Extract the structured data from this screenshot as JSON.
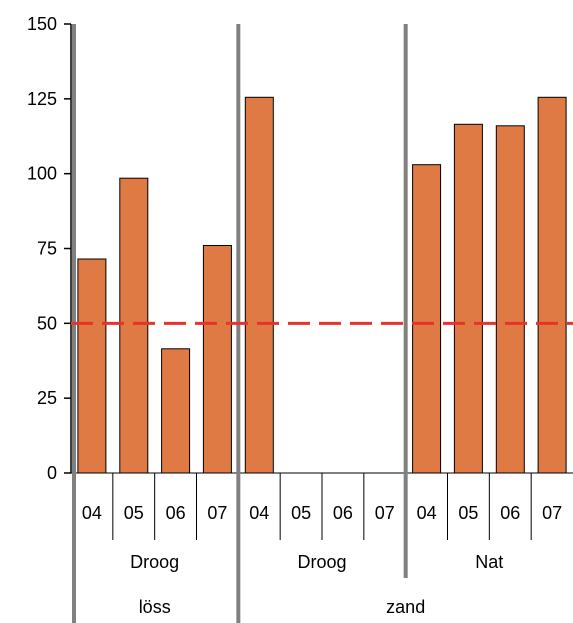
{
  "chart_data": {
    "type": "bar",
    "title": "",
    "ylim": [
      0,
      150
    ],
    "yticks": [
      0,
      25,
      50,
      75,
      100,
      125,
      150
    ],
    "categories": [
      "04",
      "05",
      "06",
      "07",
      "04",
      "05",
      "06",
      "07",
      "04",
      "05",
      "06",
      "07"
    ],
    "values": [
      71.5,
      98.5,
      41.5,
      76,
      125.5,
      null,
      null,
      null,
      103,
      116.5,
      116,
      125.5
    ],
    "groups_level1": [
      {
        "label": "Droog",
        "start": 0,
        "count": 4
      },
      {
        "label": "Droog",
        "start": 4,
        "count": 4
      },
      {
        "label": "Nat",
        "start": 8,
        "count": 4
      }
    ],
    "groups_level2": [
      {
        "label": "löss",
        "start": 0,
        "count": 4
      },
      {
        "label": "zand",
        "start": 4,
        "count": 8
      }
    ],
    "reference_line": {
      "value": 50,
      "color": "#e8322a",
      "style": "dashed"
    },
    "bar_color": "#e07a44",
    "bar_stroke": "#000000",
    "separator_color": "#808080",
    "grid": false,
    "legend": false
  }
}
